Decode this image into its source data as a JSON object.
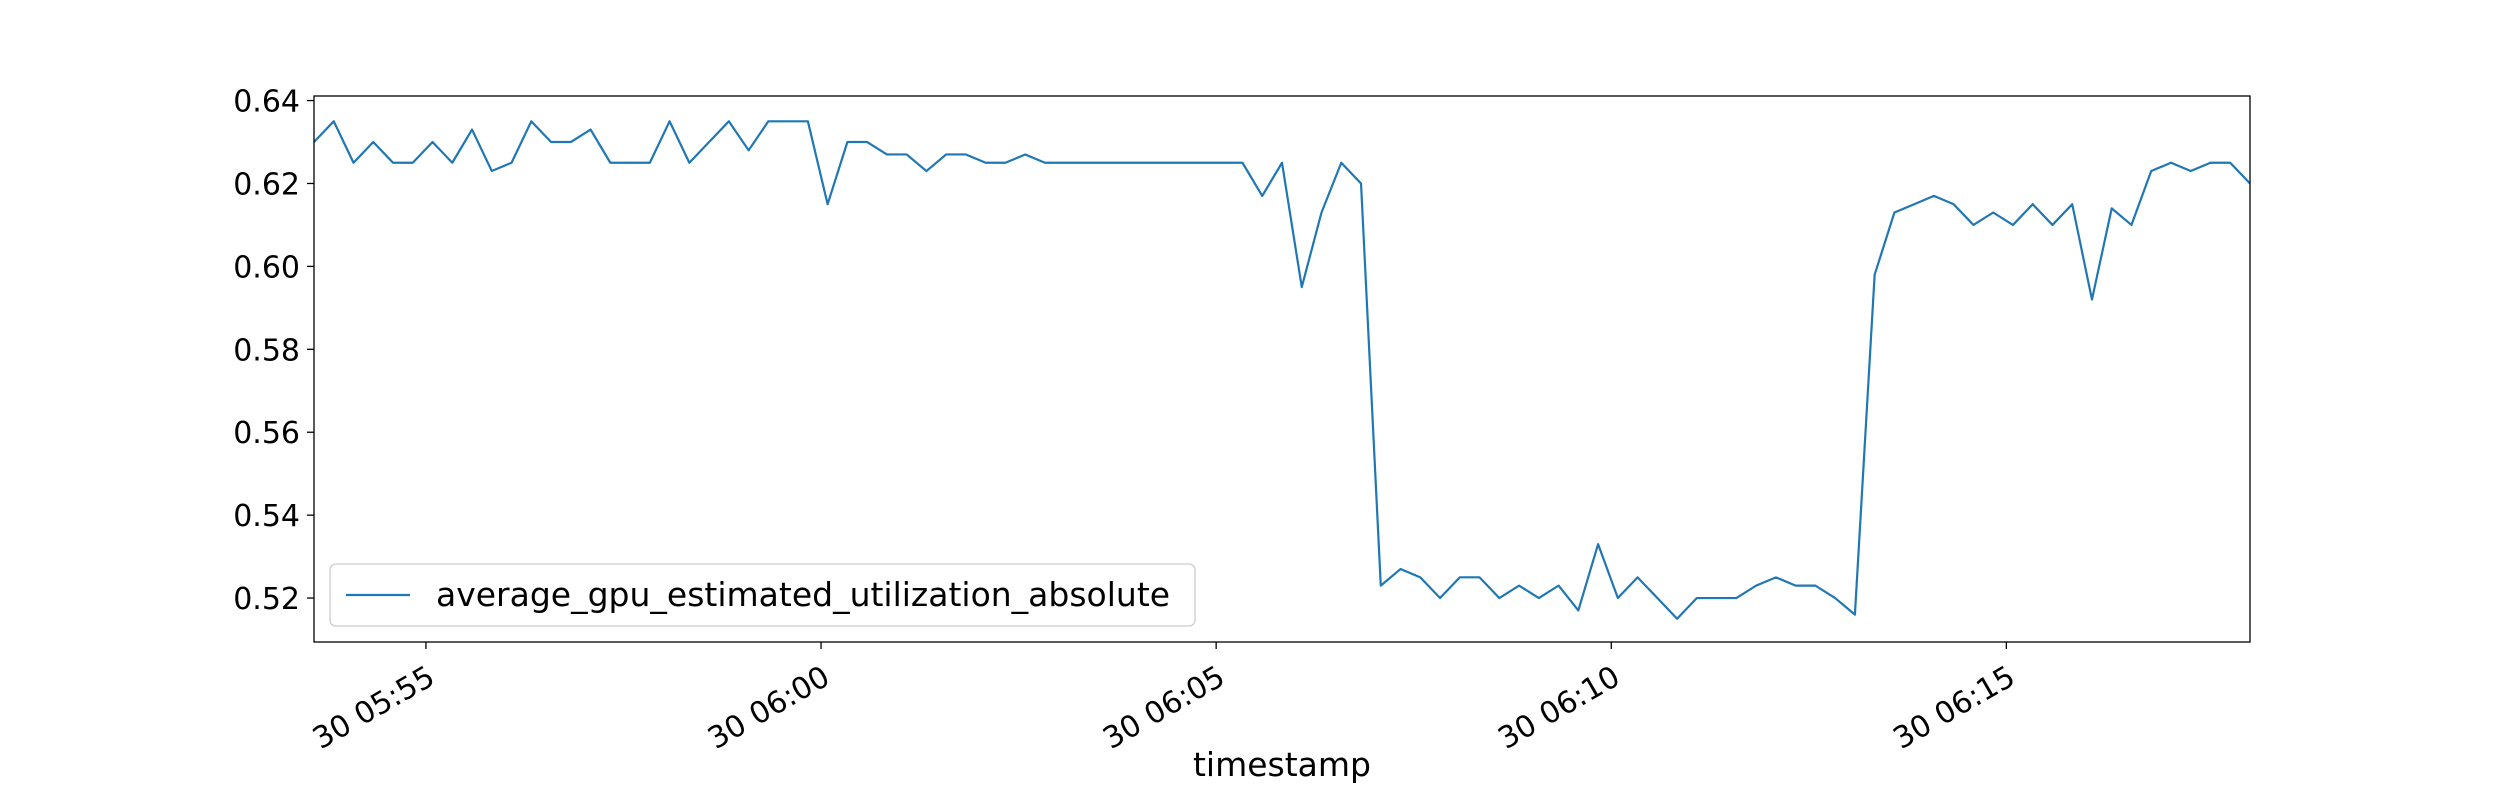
{
  "chart_data": {
    "type": "line",
    "xlabel": "timestamp",
    "x": [
      "30 05:53:35",
      "30 05:53:50",
      "30 05:54:05",
      "30 05:54:20",
      "30 05:54:35",
      "30 05:54:50",
      "30 05:55:05",
      "30 05:55:20",
      "30 05:55:35",
      "30 05:55:50",
      "30 05:56:05",
      "30 05:56:20",
      "30 05:56:35",
      "30 05:56:50",
      "30 05:57:05",
      "30 05:57:20",
      "30 05:57:35",
      "30 05:57:50",
      "30 05:58:05",
      "30 05:58:20",
      "30 05:58:35",
      "30 05:58:50",
      "30 05:59:05",
      "30 05:59:20",
      "30 05:59:35",
      "30 05:59:50",
      "30 06:00:05",
      "30 06:00:20",
      "30 06:00:35",
      "30 06:00:50",
      "30 06:01:05",
      "30 06:01:20",
      "30 06:01:35",
      "30 06:01:50",
      "30 06:02:05",
      "30 06:02:20",
      "30 06:02:35",
      "30 06:02:50",
      "30 06:03:05",
      "30 06:03:20",
      "30 06:03:35",
      "30 06:03:50",
      "30 06:04:05",
      "30 06:04:20",
      "30 06:04:35",
      "30 06:04:50",
      "30 06:05:05",
      "30 06:05:20",
      "30 06:05:35",
      "30 06:05:50",
      "30 06:06:05",
      "30 06:06:20",
      "30 06:06:35",
      "30 06:06:50",
      "30 06:07:05",
      "30 06:07:20",
      "30 06:07:35",
      "30 06:07:50",
      "30 06:08:05",
      "30 06:08:20",
      "30 06:08:35",
      "30 06:08:50",
      "30 06:09:05",
      "30 06:09:20",
      "30 06:09:35",
      "30 06:09:50",
      "30 06:10:05",
      "30 06:10:20",
      "30 06:10:35",
      "30 06:10:50",
      "30 06:11:05",
      "30 06:11:20",
      "30 06:11:35",
      "30 06:11:50",
      "30 06:12:05",
      "30 06:12:20",
      "30 06:12:35",
      "30 06:12:50",
      "30 06:13:05",
      "30 06:13:20",
      "30 06:13:35",
      "30 06:13:50",
      "30 06:14:05",
      "30 06:14:20",
      "30 06:14:35",
      "30 06:14:50",
      "30 06:15:05",
      "30 06:15:20",
      "30 06:15:35",
      "30 06:15:50",
      "30 06:16:05",
      "30 06:16:20",
      "30 06:16:35",
      "30 06:16:50",
      "30 06:17:05",
      "30 06:17:20",
      "30 06:17:35",
      "30 06:17:50",
      "30 06:18:05"
    ],
    "series": [
      {
        "name": "average_gpu_estimated_utilization_absolute",
        "color": "#1f77b4",
        "values": [
          0.63,
          0.635,
          0.625,
          0.63,
          0.625,
          0.625,
          0.63,
          0.625,
          0.633,
          0.623,
          0.625,
          0.635,
          0.63,
          0.63,
          0.633,
          0.625,
          0.625,
          0.625,
          0.635,
          0.625,
          0.63,
          0.635,
          0.628,
          0.635,
          0.635,
          0.635,
          0.615,
          0.63,
          0.63,
          0.627,
          0.627,
          0.623,
          0.627,
          0.627,
          0.625,
          0.625,
          0.627,
          0.625,
          0.625,
          0.625,
          0.625,
          0.625,
          0.625,
          0.625,
          0.625,
          0.625,
          0.625,
          0.625,
          0.617,
          0.625,
          0.595,
          0.613,
          0.625,
          0.62,
          0.523,
          0.527,
          0.525,
          0.52,
          0.525,
          0.525,
          0.52,
          0.523,
          0.52,
          0.523,
          0.517,
          0.533,
          0.52,
          0.525,
          0.52,
          0.515,
          0.52,
          0.52,
          0.52,
          0.523,
          0.525,
          0.523,
          0.523,
          0.52,
          0.516,
          0.598,
          0.613,
          0.615,
          0.617,
          0.615,
          0.61,
          0.613,
          0.61,
          0.615,
          0.61,
          0.615,
          0.592,
          0.614,
          0.61,
          0.623,
          0.625,
          0.623,
          0.625,
          0.625,
          0.62
        ]
      }
    ],
    "xlim": [
      "30 05:53:35",
      "30 06:18:05"
    ],
    "xticks": [
      {
        "value": "30 05:55:00",
        "label": "30 05:55"
      },
      {
        "value": "30 06:00:00",
        "label": "30 06:00"
      },
      {
        "value": "30 06:05:00",
        "label": "30 06:05"
      },
      {
        "value": "30 06:10:00",
        "label": "30 06:10"
      },
      {
        "value": "30 06:15:00",
        "label": "30 06:15"
      }
    ],
    "ylim": [
      0.5094,
      0.6411
    ],
    "yticks": [
      0.52,
      0.54,
      0.56,
      0.58,
      {
        "value": 0.6,
        "label": "0.60"
      },
      0.62,
      0.64
    ],
    "grid": false,
    "legend": "lower left"
  }
}
